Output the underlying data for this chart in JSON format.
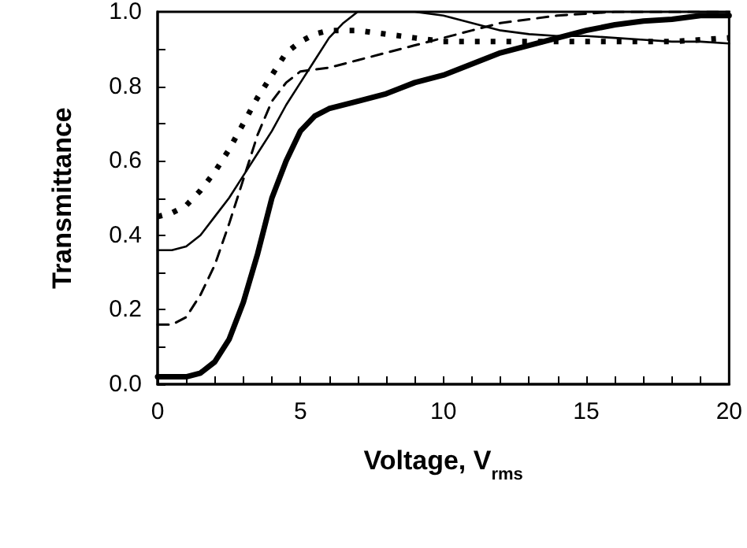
{
  "chart_data": {
    "type": "line",
    "xlabel": "Voltage, V$_{rms}$",
    "ylabel": "Transmittance",
    "xlim": [
      0,
      20
    ],
    "ylim": [
      0,
      1
    ],
    "xticks": [
      0,
      {
        "value": 1,
        "label": null
      },
      {
        "value": 2,
        "label": null
      },
      {
        "value": 3,
        "label": null
      },
      {
        "value": 4,
        "label": null
      },
      5,
      {
        "value": 6,
        "label": null
      },
      {
        "value": 7,
        "label": null
      },
      {
        "value": 8,
        "label": null
      },
      {
        "value": 9,
        "label": null
      },
      10,
      {
        "value": 11,
        "label": null
      },
      {
        "value": 12,
        "label": null
      },
      {
        "value": 13,
        "label": null
      },
      {
        "value": 14,
        "label": null
      },
      15,
      {
        "value": 16,
        "label": null
      },
      {
        "value": 17,
        "label": null
      },
      {
        "value": 18,
        "label": null
      },
      {
        "value": 19,
        "label": null
      },
      20
    ],
    "yticks": [
      {
        "value": 0,
        "label": "0.0"
      },
      {
        "value": 0.1,
        "label": null
      },
      {
        "value": 0.2,
        "label": "0.2"
      },
      {
        "value": 0.3,
        "label": null
      },
      {
        "value": 0.4,
        "label": "0.4"
      },
      {
        "value": 0.5,
        "label": null
      },
      {
        "value": 0.6,
        "label": "0.6"
      },
      {
        "value": 0.7,
        "label": null
      },
      {
        "value": 0.8,
        "label": "0.8"
      },
      {
        "value": 0.9,
        "label": null
      },
      {
        "value": 1,
        "label": "1.0"
      }
    ],
    "grid": false,
    "marker": "none",
    "series": [
      {
        "color": "#000000",
        "line_style": "solid",
        "x": [
          0,
          1,
          1.5,
          2,
          2.5,
          3,
          3.5,
          4,
          4.5,
          5,
          5.5,
          6,
          7,
          8,
          9,
          10,
          11,
          12,
          13,
          14,
          15,
          16,
          17,
          18,
          19,
          20
        ],
        "values": [
          0.02,
          0.02,
          0.03,
          0.06,
          0.12,
          0.22,
          0.35,
          0.5,
          0.6,
          0.68,
          0.72,
          0.74,
          0.76,
          0.78,
          0.81,
          0.83,
          0.86,
          0.89,
          0.91,
          0.93,
          0.95,
          0.965,
          0.975,
          0.98,
          0.99,
          0.99
        ]
      },
      {
        "color": "#000000",
        "line_style": "solid",
        "x": [
          0,
          0.5,
          1,
          1.5,
          2,
          2.5,
          3,
          3.5,
          4,
          4.5,
          5,
          5.5,
          6,
          6.5,
          7,
          8,
          9,
          10,
          11,
          12,
          13,
          14,
          15,
          16,
          17,
          18,
          19,
          20
        ],
        "values": [
          0.36,
          0.36,
          0.37,
          0.4,
          0.45,
          0.5,
          0.56,
          0.62,
          0.68,
          0.75,
          0.81,
          0.87,
          0.93,
          0.97,
          1.0,
          1.0,
          1.0,
          0.99,
          0.97,
          0.95,
          0.94,
          0.935,
          0.935,
          0.93,
          0.925,
          0.92,
          0.92,
          0.915
        ]
      },
      {
        "color": "#000000",
        "line_style": "dashed",
        "x": [
          0,
          0.5,
          1,
          1.5,
          2,
          2.5,
          3,
          3.5,
          4,
          4.5,
          5,
          6,
          7,
          8,
          9,
          10,
          11,
          12,
          13,
          14,
          16,
          18,
          20
        ],
        "values": [
          0.16,
          0.16,
          0.18,
          0.24,
          0.32,
          0.43,
          0.55,
          0.67,
          0.76,
          0.81,
          0.84,
          0.85,
          0.87,
          0.89,
          0.91,
          0.93,
          0.95,
          0.97,
          0.98,
          0.99,
          1.0,
          1.0,
          1.0
        ]
      },
      {
        "color": "#000000",
        "line_style": "dotted",
        "x": [
          0,
          0.5,
          1,
          1.5,
          2,
          2.5,
          3,
          3.5,
          4,
          4.5,
          5,
          5.5,
          6,
          7,
          8,
          9,
          10,
          12,
          14,
          16,
          18,
          20
        ],
        "values": [
          0.45,
          0.46,
          0.48,
          0.52,
          0.57,
          0.63,
          0.7,
          0.77,
          0.83,
          0.89,
          0.92,
          0.94,
          0.95,
          0.95,
          0.94,
          0.93,
          0.92,
          0.92,
          0.92,
          0.92,
          0.92,
          0.93
        ]
      }
    ]
  }
}
